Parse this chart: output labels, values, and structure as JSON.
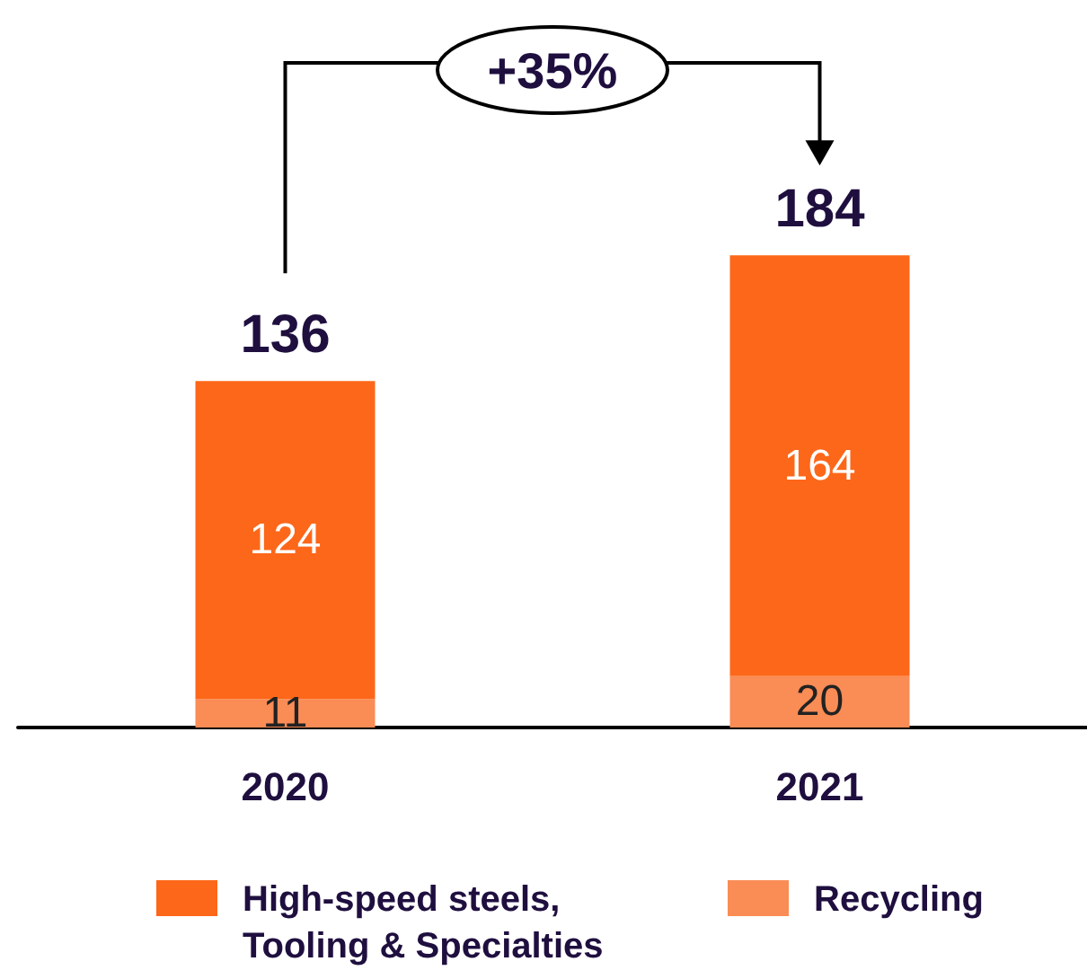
{
  "chart_data": {
    "type": "bar",
    "stacked": true,
    "categories": [
      "2020",
      "2021"
    ],
    "series": [
      {
        "name": "Recycling",
        "color": "#fa8c55",
        "values": [
          11,
          20
        ]
      },
      {
        "name": "High-speed steels, Tooling & Specialties",
        "color": "#fd6719",
        "values": [
          124,
          164
        ]
      }
    ],
    "data_labels": true,
    "totals": [
      "136",
      "184"
    ],
    "legend": "bottom",
    "annotations": [
      "+35%"
    ]
  }
}
